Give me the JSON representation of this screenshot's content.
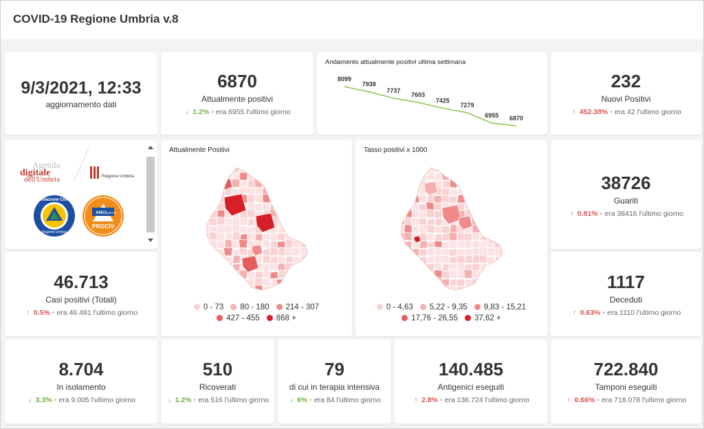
{
  "header": {
    "title": "COVID-19 Regione Umbria v.8"
  },
  "update": {
    "datetime": "9/3/2021, 12:33",
    "label": "aggiornamento dati"
  },
  "positivi": {
    "value": "6870",
    "label": "Attualmente positivi",
    "pct": "1.2%",
    "prev": "era 6955 l'ultimo giorno",
    "trend": "down"
  },
  "trend_chart": {
    "title": "Andamento attualmente positivi ultima settimana",
    "chart_data": {
      "type": "line",
      "values": [
        8099,
        7938,
        7737,
        7603,
        7425,
        7279,
        6955,
        6870
      ],
      "labels": [
        "8099",
        "7938",
        "7737",
        "7603",
        "7425",
        "7279",
        "6955",
        "6870"
      ],
      "line_color": "#8bc34a"
    }
  },
  "nuovi": {
    "value": "232",
    "label": "Nuovi Positivi",
    "pct": "452.38%",
    "prev": "era 42 l'ultimo giorno",
    "trend": "up"
  },
  "logos": {
    "agenda_line1": "Agenda",
    "agenda_line2": "digitale",
    "agenda_line3": "dell'Umbria",
    "regione": "Regione Umbria",
    "pc_ring": "Protezione Civile",
    "pc_bottom": "Regione Umbria",
    "anci": "ANCI",
    "anci_sub": "UMBRIA",
    "prociv": "PROCIV"
  },
  "map1": {
    "title": "Attualmente Positivi",
    "legend": [
      {
        "label": "0 - 73",
        "color": "#f9d3d3"
      },
      {
        "label": "80 - 180",
        "color": "#f4b0b0"
      },
      {
        "label": "214 - 307",
        "color": "#ee8a8a"
      },
      {
        "label": "427 - 455",
        "color": "#e55c5c"
      },
      {
        "label": "868 +",
        "color": "#d61f26"
      }
    ]
  },
  "map2": {
    "title": "Tasso positivi x 1000",
    "legend": [
      {
        "label": "0 - 4,63",
        "color": "#f9d3d3"
      },
      {
        "label": "5,22 - 9,35",
        "color": "#f4b0b0"
      },
      {
        "label": "9,83 - 15,21",
        "color": "#ee8a8a"
      },
      {
        "label": "17,76 - 26,55",
        "color": "#e55c5c"
      },
      {
        "label": "37,62 +",
        "color": "#d61f26"
      }
    ]
  },
  "guariti": {
    "value": "38726",
    "label": "Guariti",
    "pct": "0.81%",
    "prev": "era 38416 l'ultimo giorno",
    "trend": "up"
  },
  "casi": {
    "value": "46.713",
    "label": "Casi positivi (Totali)",
    "pct": "0.5%",
    "prev": "era 46.481 l'ultimo giorno",
    "trend": "up"
  },
  "deceduti": {
    "value": "1117",
    "label": "Deceduti",
    "pct": "0.63%",
    "prev": "era 1110 l'ultimo giorno",
    "trend": "up"
  },
  "isolamento": {
    "value": "8.704",
    "label": "In isolamento",
    "pct": "3.3%",
    "prev": "era 9.005 l'ultimo giorno",
    "trend": "down"
  },
  "ricoverati": {
    "value": "510",
    "label": "Ricoverati",
    "pct": "1.2%",
    "prev": "era 516 l'ultimo giorno",
    "trend": "down"
  },
  "terapia": {
    "value": "79",
    "label": "di cui in terapia intensiva",
    "pct": "6%",
    "prev": "era 84 l'ultimo giorno",
    "trend": "down"
  },
  "antigenici": {
    "value": "140.485",
    "label": "Antigenici eseguiti",
    "pct": "2.8%",
    "prev": "era 136.724 l'ultimo giorno",
    "trend": "up"
  },
  "tamponi": {
    "value": "722.840",
    "label": "Tamponi eseguiti",
    "pct": "0.66%",
    "prev": "era 718.078 l'ultimo giorno",
    "trend": "up"
  }
}
